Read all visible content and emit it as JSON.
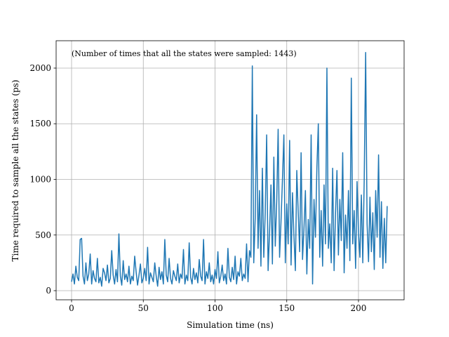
{
  "chart_data": {
    "type": "line",
    "xlabel": "Simulation time (ns)",
    "ylabel": "Time required to sample all the states (ps)",
    "annotation": "(Number of times that all the states were sampled: 1443)",
    "color": "#1f77b4",
    "grid": true,
    "xlim": [
      -10.76,
      231.8
    ],
    "ylim": [
      -82,
      2246
    ],
    "xticks": [
      0,
      50,
      100,
      150,
      200
    ],
    "yticks": [
      0,
      500,
      1000,
      1500,
      2000
    ],
    "x": [
      0,
      1,
      2,
      3,
      4,
      5,
      6,
      7,
      8,
      9,
      10,
      11,
      12,
      13,
      14,
      15,
      16,
      17,
      18,
      19,
      20,
      21,
      22,
      23,
      24,
      25,
      26,
      27,
      28,
      29,
      30,
      31,
      32,
      33,
      34,
      35,
      36,
      37,
      38,
      39,
      40,
      41,
      42,
      43,
      44,
      45,
      46,
      47,
      48,
      49,
      50,
      51,
      52,
      53,
      54,
      55,
      56,
      57,
      58,
      59,
      60,
      61,
      62,
      63,
      64,
      65,
      66,
      67,
      68,
      69,
      70,
      71,
      72,
      73,
      74,
      75,
      76,
      77,
      78,
      79,
      80,
      81,
      82,
      83,
      84,
      85,
      86,
      87,
      88,
      89,
      90,
      91,
      92,
      93,
      94,
      95,
      96,
      97,
      98,
      99,
      100,
      101,
      102,
      103,
      104,
      105,
      106,
      107,
      108,
      109,
      110,
      111,
      112,
      113,
      114,
      115,
      116,
      117,
      118,
      119,
      120,
      121,
      122,
      123,
      124,
      125,
      126,
      127,
      128,
      129,
      130,
      131,
      132,
      133,
      134,
      135,
      136,
      137,
      138,
      139,
      140,
      141,
      142,
      143,
      144,
      145,
      146,
      147,
      148,
      149,
      150,
      151,
      152,
      153,
      154,
      155,
      156,
      157,
      158,
      159,
      160,
      161,
      162,
      163,
      164,
      165,
      166,
      167,
      168,
      169,
      170,
      171,
      172,
      173,
      174,
      175,
      176,
      177,
      178,
      179,
      180,
      181,
      182,
      183,
      184,
      185,
      186,
      187,
      188,
      189,
      190,
      191,
      192,
      193,
      194,
      195,
      196,
      197,
      198,
      199,
      200,
      201,
      202,
      203,
      204,
      205,
      206,
      207,
      208,
      209,
      210,
      211,
      212,
      213,
      214,
      215,
      216,
      217,
      218,
      219,
      220
    ],
    "values": [
      80,
      150,
      60,
      220,
      120,
      90,
      460,
      470,
      130,
      60,
      250,
      90,
      150,
      330,
      60,
      180,
      110,
      80,
      290,
      70,
      120,
      40,
      200,
      160,
      90,
      230,
      70,
      110,
      360,
      140,
      60,
      190,
      80,
      510,
      130,
      50,
      270,
      100,
      150,
      80,
      220,
      60,
      130,
      90,
      310,
      170,
      50,
      140,
      240,
      70,
      110,
      200,
      90,
      390,
      60,
      160,
      120,
      80,
      250,
      130,
      40,
      210,
      100,
      170,
      60,
      460,
      140,
      80,
      290,
      110,
      60,
      180,
      130,
      90,
      240,
      70,
      150,
      110,
      370,
      60,
      140,
      90,
      430,
      120,
      60,
      200,
      100,
      160,
      70,
      280,
      130,
      90,
      460,
      60,
      170,
      110,
      250,
      80,
      140,
      60,
      190,
      110,
      350,
      70,
      130,
      230,
      90,
      150,
      60,
      380,
      120,
      80,
      210,
      100,
      310,
      60,
      170,
      130,
      290,
      90,
      150,
      110,
      420,
      80,
      360,
      300,
      2020,
      250,
      650,
      1580,
      380,
      900,
      220,
      1100,
      300,
      700,
      1400,
      180,
      520,
      950,
      240,
      1200,
      400,
      800,
      1450,
      300,
      620,
      1000,
      1400,
      250,
      780,
      420,
      1350,
      230,
      880,
      500,
      180,
      1080,
      700,
      350,
      1240,
      280,
      560,
      900,
      150,
      640,
      380,
      1400,
      60,
      820,
      480,
      1100,
      1500,
      300,
      720,
      220,
      950,
      420,
      2000,
      380,
      600,
      250,
      1100,
      180,
      700,
      1080,
      320,
      820,
      450,
      1240,
      160,
      680,
      380,
      900,
      270,
      1910,
      420,
      720,
      200,
      980,
      520,
      300,
      860,
      250,
      1000,
      2140,
      600,
      260,
      840,
      350,
      700,
      190,
      900,
      480,
      1220,
      300,
      800,
      200,
      650,
      250,
      760
    ]
  }
}
